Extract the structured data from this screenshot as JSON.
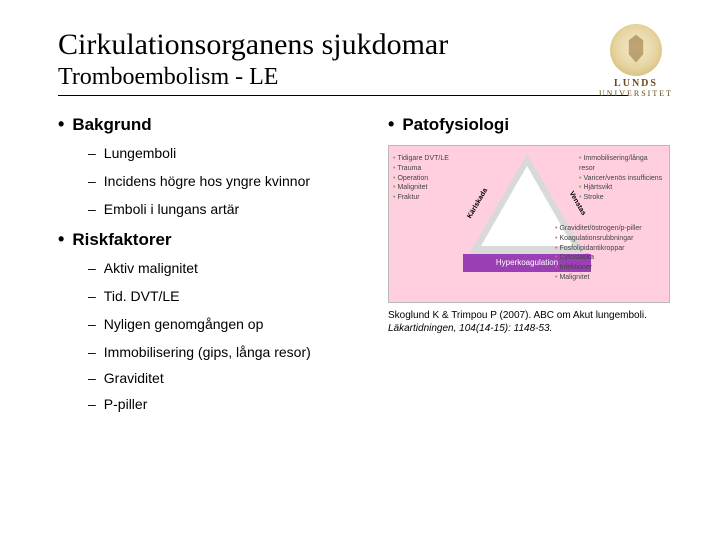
{
  "header": {
    "title": "Cirkulationsorganens sjukdomar",
    "subtitle": "Tromboembolism - LE",
    "logo_line1": "LUNDS",
    "logo_line2": "UNIVERSITET"
  },
  "left": {
    "h_bakgrund": "Bakgrund",
    "bakgrund_items": {
      "a": "Lungemboli",
      "b": "Incidens högre hos yngre kvinnor",
      "c": "Emboli i lungans artär"
    },
    "h_risk": "Riskfaktorer",
    "risk_items": {
      "a": "Aktiv malignitet",
      "b": "Tid. DVT/LE",
      "c": "Nyligen genomgången op"
    }
  },
  "full_items": {
    "d": "Immobilisering (gips, långa resor)",
    "e": "Graviditet",
    "f": "P-piller"
  },
  "right": {
    "h_pato": "Patofysiologi",
    "triangle": {
      "side_left": "Kärlskada",
      "side_right": "Venstas",
      "base": "Hyperkoagulation",
      "left_bullets": [
        "Tidigare DVT/LE",
        "Trauma",
        "Operation",
        "Malignitet",
        "Fraktur"
      ],
      "right_bullets": [
        "Immobilisering/långa resor",
        "Varicer/venös insufficiens",
        "Hjärtsvikt",
        "Stroke"
      ],
      "bottom_bullets": [
        "Graviditet/östrogen/p-piller",
        "Koagulationsrubbningar",
        "Fosfolipidantikroppar",
        "Cytostatika",
        "Infektioner",
        "Malignitet"
      ]
    },
    "citation_line1": "Skoglund K & Trimpou P (2007). ABC om Akut lungemboli.",
    "citation_line2": "Läkartidningen, 104(14-15): 1148-53."
  }
}
